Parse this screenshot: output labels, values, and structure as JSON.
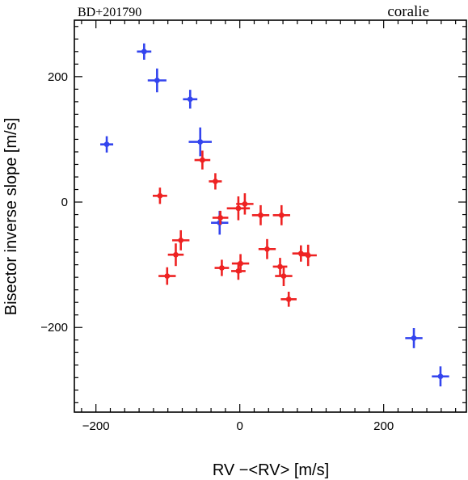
{
  "chart_data": {
    "type": "scatter",
    "title_left": "BD+201790",
    "title_right": "coralie",
    "xlabel": "RV −<RV> [m/s]",
    "ylabel": "Bisector inverse slope [m/s]",
    "xlim": [
      -230,
      315
    ],
    "ylim": [
      -335,
      290
    ],
    "x_ticks": [
      -200,
      0,
      200
    ],
    "y_ticks": [
      -200,
      0,
      200
    ],
    "x_minor_step": 20,
    "y_minor_step": 20,
    "grid": false,
    "series": [
      {
        "color": "#3344ee",
        "points": [
          {
            "x": -185,
            "y": 92,
            "xerr": 9,
            "yerr": 13
          },
          {
            "x": -133,
            "y": 240,
            "xerr": 10,
            "yerr": 13
          },
          {
            "x": -115,
            "y": 194,
            "xerr": 13,
            "yerr": 19
          },
          {
            "x": -69,
            "y": 164,
            "xerr": 10,
            "yerr": 15
          },
          {
            "x": -55,
            "y": 96,
            "xerr": 16,
            "yerr": 23
          },
          {
            "x": -28,
            "y": -33,
            "xerr": 12,
            "yerr": 19
          },
          {
            "x": 242,
            "y": -217,
            "xerr": 12,
            "yerr": 16
          },
          {
            "x": 279,
            "y": -278,
            "xerr": 12,
            "yerr": 16
          }
        ]
      },
      {
        "color": "#ee2222",
        "points": [
          {
            "x": -111,
            "y": 10,
            "xerr": 10,
            "yerr": 13
          },
          {
            "x": -52,
            "y": 67,
            "xerr": 11,
            "yerr": 15
          },
          {
            "x": -34,
            "y": 33,
            "xerr": 9,
            "yerr": 13
          },
          {
            "x": -27,
            "y": -25,
            "xerr": 11,
            "yerr": 11
          },
          {
            "x": -82,
            "y": -61,
            "xerr": 12,
            "yerr": 16
          },
          {
            "x": -89,
            "y": -84,
            "xerr": 11,
            "yerr": 18
          },
          {
            "x": -101,
            "y": -118,
            "xerr": 12,
            "yerr": 14
          },
          {
            "x": -25,
            "y": -105,
            "xerr": 10,
            "yerr": 13
          },
          {
            "x": -2,
            "y": -10,
            "xerr": 16,
            "yerr": 19
          },
          {
            "x": 7,
            "y": -3,
            "xerr": 12,
            "yerr": 17
          },
          {
            "x": -2,
            "y": -110,
            "xerr": 10,
            "yerr": 14
          },
          {
            "x": 1,
            "y": -98,
            "xerr": 12,
            "yerr": 15
          },
          {
            "x": 29,
            "y": -21,
            "xerr": 12,
            "yerr": 16
          },
          {
            "x": 38,
            "y": -75,
            "xerr": 12,
            "yerr": 16
          },
          {
            "x": 58,
            "y": -21,
            "xerr": 12,
            "yerr": 16
          },
          {
            "x": 56,
            "y": -103,
            "xerr": 10,
            "yerr": 14
          },
          {
            "x": 61,
            "y": -118,
            "xerr": 12,
            "yerr": 16
          },
          {
            "x": 68,
            "y": -155,
            "xerr": 11,
            "yerr": 12
          },
          {
            "x": 85,
            "y": -82,
            "xerr": 12,
            "yerr": 13
          },
          {
            "x": 95,
            "y": -85,
            "xerr": 12,
            "yerr": 17
          }
        ]
      }
    ]
  }
}
